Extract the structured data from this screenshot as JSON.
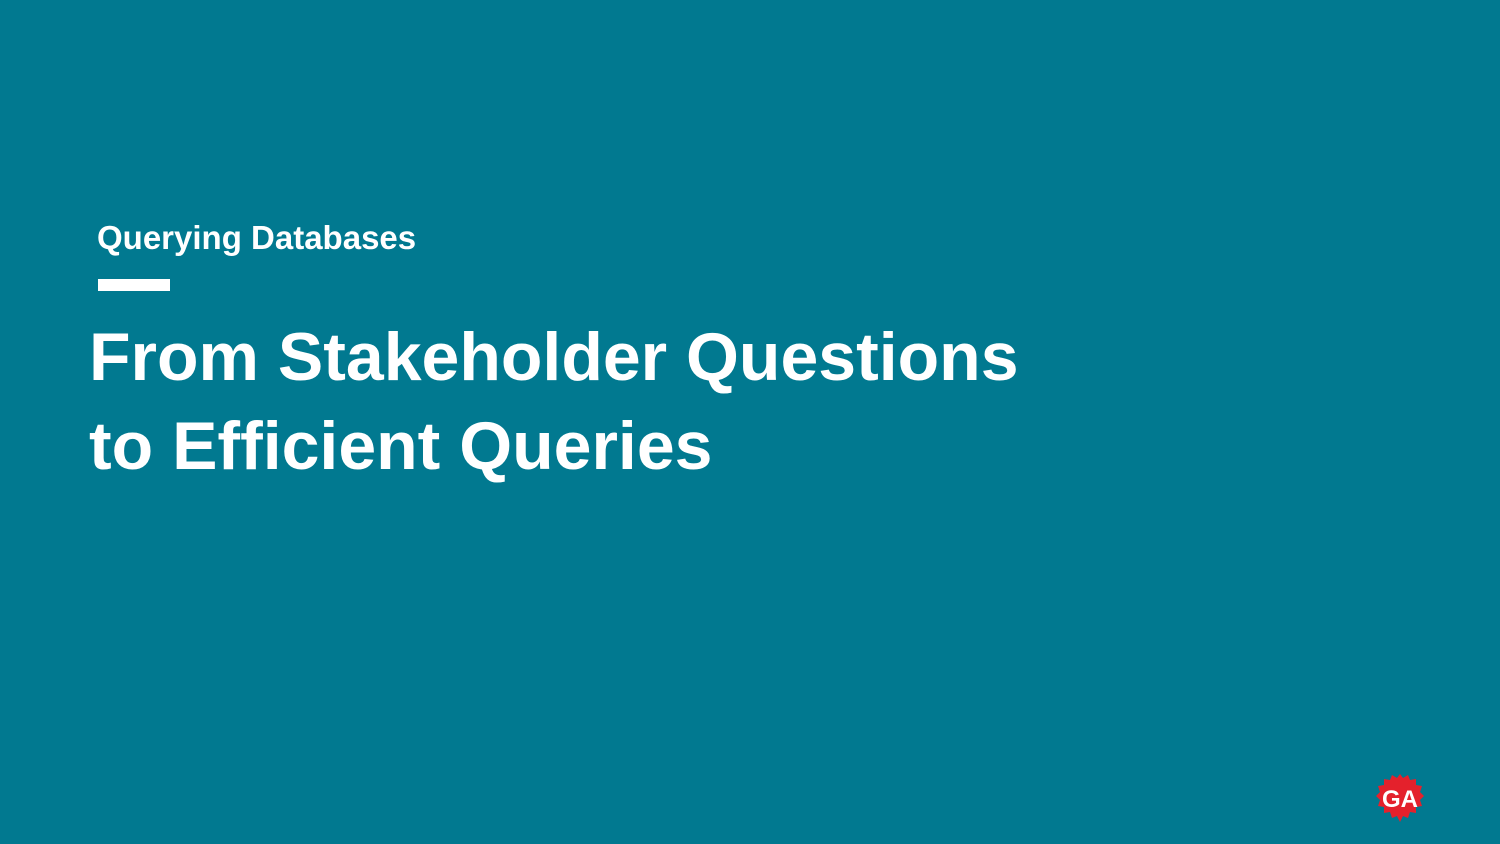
{
  "slide": {
    "eyebrow": "Querying Databases",
    "title_line_1": "From Stakeholder Questions",
    "title_line_2": "to Efficient Queries",
    "logo_text": "GA"
  },
  "colors": {
    "background": "#017990",
    "text": "#ffffff",
    "logo_red": "#e4212c"
  },
  "icons": {
    "brand_logo": "ga-seal-icon"
  }
}
